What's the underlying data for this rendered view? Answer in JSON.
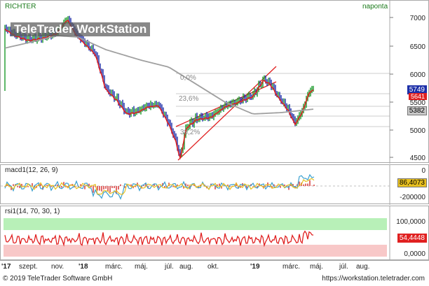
{
  "instrument": "RICHTER",
  "period": "naponta",
  "watermark": "TeleTrader WorkStation",
  "price_panel": {
    "y_ticks": [
      "7000",
      "6500",
      "6000",
      "5500",
      "5000",
      "4500"
    ],
    "fib_labels": [
      "0,0%",
      "23,6%",
      "38,2%"
    ],
    "value_tags": {
      "last": "5749",
      "ma_fast": "5641",
      "ma_slow": "5382"
    },
    "colors": {
      "bull": "#1a9a2a",
      "bear": "#1a2aa8",
      "ma_fast": "#e02020",
      "ma_slow": "#a0a0a0",
      "channel": "#e02020"
    }
  },
  "macd_panel": {
    "label": "macd1(12, 26, 9)",
    "y_ticks": [
      "0",
      "-200000"
    ],
    "value_tag": "86,4073",
    "colors": {
      "macd": "#3aa0d0",
      "signal": "#e8c020",
      "hist": "#e06a6a"
    }
  },
  "rsi_panel": {
    "label": "rsi1(14, 70, 30, 1)",
    "y_ticks": [
      "100,0000",
      "0,0000"
    ],
    "value_tag": "54,4448",
    "colors": {
      "line": "#e02020",
      "upper_band": "#b8f0b8",
      "lower_band": "#f8c8c8"
    }
  },
  "x_axis": [
    "'17",
    "szept.",
    "nov.",
    "'18",
    "márc.",
    "máj.",
    "júl.",
    "aug.",
    "okt.",
    "'19",
    "márc.",
    "máj.",
    "júl.",
    "aug."
  ],
  "footer": {
    "copyright": "© 2019 TeleTrader Software GmbH",
    "url": "https://workstation.teletrader.com"
  }
}
